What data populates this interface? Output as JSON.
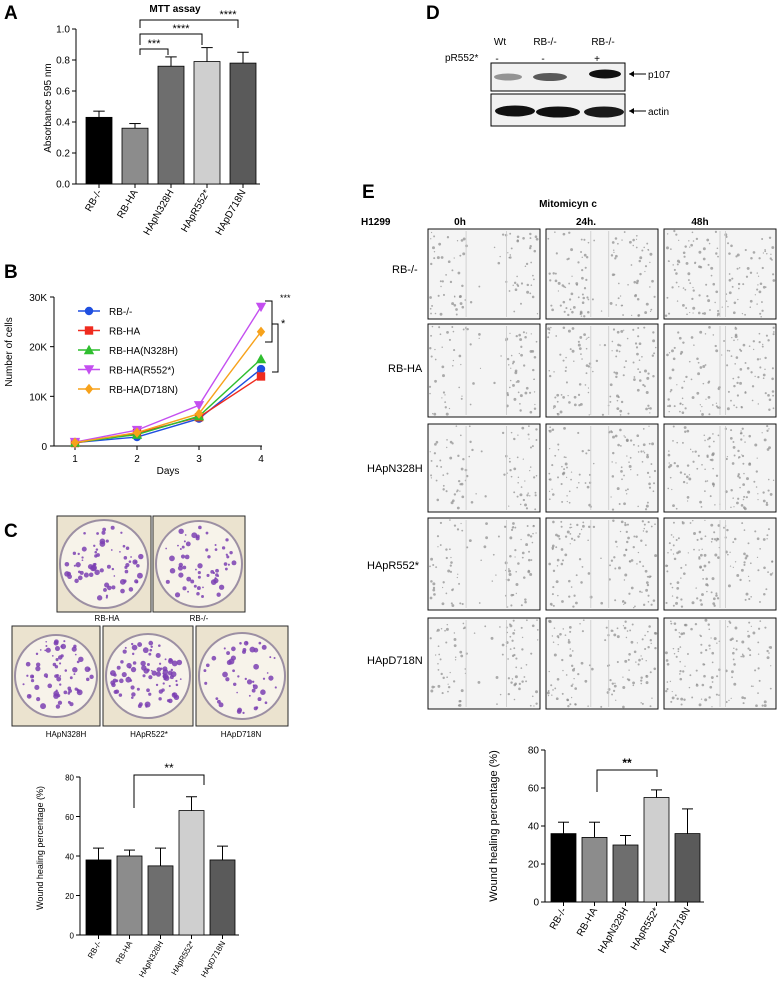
{
  "panels": {
    "A": "A",
    "B": "B",
    "C": "C",
    "D": "D",
    "E": "E"
  },
  "panel_a": {
    "sig": [
      "***",
      "****",
      "****"
    ]
  },
  "panel_b": {
    "sig": [
      "***",
      "*"
    ]
  },
  "panel_c": {
    "plate_labels_top": [
      "RB-HA",
      "RB-/-"
    ],
    "plate_labels_bottom": [
      "HApN328H",
      "HApR522*",
      "HApD718N"
    ],
    "plate_color": "#7b3fb3",
    "sig": "**"
  },
  "panel_d": {
    "lane_labels": [
      "Wt",
      "RB-/-",
      "RB-/-"
    ],
    "row_label": "pR552*",
    "row_values": [
      "-",
      "-",
      "+"
    ],
    "bands": [
      "p107",
      "actin"
    ]
  },
  "panel_e": {
    "title": "Mitomicyn c",
    "cell_line": "H1299",
    "timepoints": [
      "0h",
      "24h.",
      "48h"
    ],
    "rows": [
      "RB-/-",
      "RB-HA",
      "HApN328H",
      "HApR552*",
      "HApD718N"
    ],
    "sig": "**"
  },
  "chart_data": [
    {
      "id": "A",
      "type": "bar",
      "title": "MTT assay",
      "xlabel": "",
      "ylabel": "Absorbance 595 nm",
      "ylim": [
        0,
        1.0
      ],
      "yticks": [
        "0.0",
        "0.2",
        "0.4",
        "0.6",
        "0.8",
        "1.0"
      ],
      "categories": [
        "RB-/-",
        "RB-HA",
        "HApN328H",
        "HApR552*",
        "HApD718N"
      ],
      "values": [
        0.43,
        0.36,
        0.76,
        0.79,
        0.78
      ],
      "errors": [
        0.04,
        0.03,
        0.06,
        0.09,
        0.07
      ],
      "colors": [
        "#000000",
        "#8c8c8c",
        "#6e6e6e",
        "#cfcfcf",
        "#5a5a5a"
      ]
    },
    {
      "id": "B",
      "type": "line",
      "xlabel": "Days",
      "ylabel": "Number of cells",
      "x": [
        1,
        2,
        3,
        4
      ],
      "ylim": [
        0,
        30000
      ],
      "yticks": [
        "0",
        "10K",
        "20K",
        "30K"
      ],
      "series": [
        {
          "name": "RB-/-",
          "color": "#1f4fe0",
          "marker": "circle",
          "values": [
            700,
            1800,
            5500,
            15500
          ]
        },
        {
          "name": "RB-HA",
          "color": "#ef2b1f",
          "marker": "square",
          "values": [
            600,
            2600,
            5800,
            14000
          ]
        },
        {
          "name": "RB-HA(N328H)",
          "color": "#2fbe2f",
          "marker": "triangle-up",
          "values": [
            700,
            2300,
            6000,
            17500
          ]
        },
        {
          "name": "RB-HA(R552*)",
          "color": "#c44ff0",
          "marker": "triangle-down",
          "values": [
            800,
            3200,
            8200,
            28000
          ]
        },
        {
          "name": "RB-HA(D718N)",
          "color": "#f7a21b",
          "marker": "diamond",
          "values": [
            700,
            2700,
            6500,
            23000
          ]
        }
      ]
    },
    {
      "id": "C",
      "type": "bar",
      "ylabel": "Wound healing percentage (%)",
      "ylim": [
        0,
        80
      ],
      "yticks": [
        "0",
        "20",
        "40",
        "60",
        "80"
      ],
      "categories": [
        "RB-/-",
        "RB-HA",
        "HApN328H",
        "HApR552*",
        "HApD718N"
      ],
      "values": [
        38,
        40,
        35,
        63,
        38
      ],
      "errors": [
        6,
        3,
        9,
        7,
        7
      ],
      "colors": [
        "#000000",
        "#8c8c8c",
        "#6e6e6e",
        "#cfcfcf",
        "#5a5a5a"
      ]
    },
    {
      "id": "E",
      "type": "bar",
      "ylabel": "Wound healing percentage (%)",
      "ylim": [
        0,
        80
      ],
      "yticks": [
        "0",
        "20",
        "40",
        "60",
        "80"
      ],
      "categories": [
        "RB-/-",
        "RB-HA",
        "HApN328H",
        "HApR552*",
        "HApD718N"
      ],
      "values": [
        36,
        34,
        30,
        55,
        36
      ],
      "errors": [
        6,
        8,
        5,
        4,
        13
      ],
      "colors": [
        "#000000",
        "#8c8c8c",
        "#6e6e6e",
        "#cfcfcf",
        "#5a5a5a"
      ]
    }
  ]
}
